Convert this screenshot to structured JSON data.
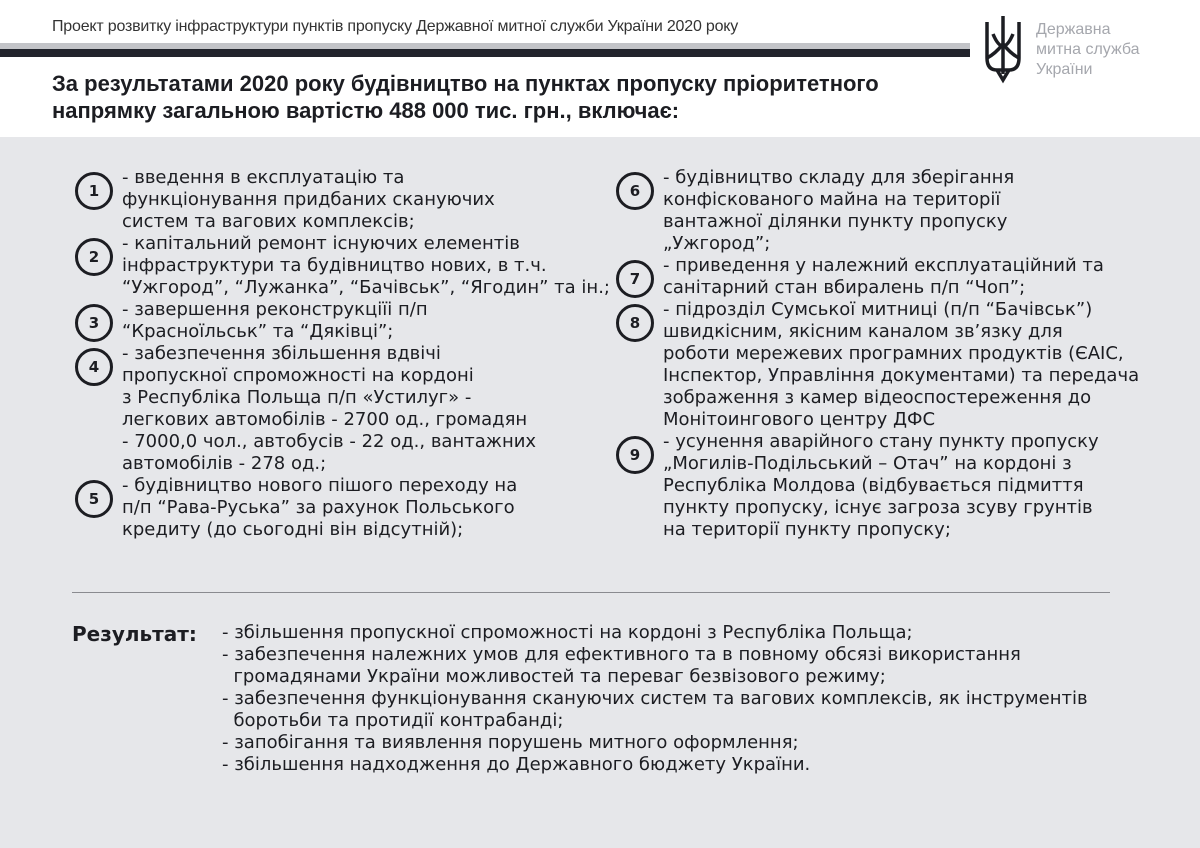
{
  "header": {
    "subtitle": "Проект розвитку інфраструктури пунктів пропуску Державної митної служби України 2020 року",
    "logo_text": [
      "Державна",
      "митна служба",
      "України"
    ],
    "title_lines": [
      "За результатами 2020 року будівництво на пунктах пропуску пріоритетного",
      "напрямку загальною вартістю 488 000 тис. грн., включає:"
    ]
  },
  "items_left": [
    {
      "num": "1",
      "lines": [
        "- введення в експлуатацію та",
        "функціонування придбаних скануючих",
        "систем та вагових комплексів;"
      ]
    },
    {
      "num": "2",
      "lines": [
        "- капітальний ремонт існуючих елементів",
        "інфраструктури та будівництво нових, в т.ч.",
        "“Ужгород”, “Лужанка”, “Бачівськ”, “Ягодин” та ін.;"
      ]
    },
    {
      "num": "3",
      "lines": [
        "- завершення реконструкціїі п/п",
        "“Красноїльськ” та “Дяківці”;"
      ]
    },
    {
      "num": "4",
      "lines": [
        "- забезпечення збільшення вдвічі",
        "пропускної спроможності на кордоні",
        "з Республіка Польща п/п «Устилуг» -",
        "легкових автомобілів - 2700 од., громадян",
        "- 7000,0 чол., автобусів - 22 од., вантажних",
        "автомобілів - 278 од.;"
      ]
    },
    {
      "num": "5",
      "lines": [
        "- будівництво нового пішого переходу на",
        "п/п “Рава-Руська” за рахунок Польського",
        "кредиту (до сьогодні він відсутній);"
      ]
    }
  ],
  "items_right": [
    {
      "num": "6",
      "lines": [
        "- будівництво складу для зберігання",
        "конфіскованого майна на території",
        "вантажної ділянки пункту пропуску",
        "„Ужгород”;"
      ]
    },
    {
      "num": "7",
      "lines": [
        "- приведення у належний експлуатаційний та",
        "санітарний стан вбиралень п/п “Чоп”;"
      ]
    },
    {
      "num": "8",
      "lines": [
        "- підрозділ Сумської митниці (п/п “Бачівськ”)",
        "швидкісним, якісним каналом зв’язку для",
        "роботи мережевих програмних продуктів (ЄАІС,",
        "Інспектор, Управління документами) та передача",
        "зображення з камер відеоспостереження до",
        "Монітоингового центру ДФС"
      ]
    },
    {
      "num": "9",
      "lines": [
        "- усунення аварійного стану пункту пропуску",
        "„Могилів-Подільський – Отач” на кордоні з",
        "Республіка Молдова (відбувається підмиття",
        "пункту пропуску, існує загроза зсуву грунтів",
        "на території пункту пропуску;"
      ]
    }
  ],
  "result": {
    "label": "Результат:",
    "lines": [
      "- збільшення пропускної спроможності на кордоні з Республіка Польща;",
      "- забезпечення належних умов для ефективного та в повному обсязі використання",
      "  громадянами України можливостей та переваг безвізового режиму;",
      "- забезпечення функціонування скануючих систем та вагових комплексів, як інструментів",
      "  боротьби та протидії контрабанді;",
      "- запобігання та виявлення порушень митного оформлення;",
      "- збільшення надходження до Державного бюджету України."
    ]
  },
  "colors": {
    "background": "#e6e7ea",
    "text": "#1c1d22",
    "stripe_dark": "#22242c",
    "stripe_light": "#c3c4c8",
    "logo_text": "#a5a7ad"
  }
}
